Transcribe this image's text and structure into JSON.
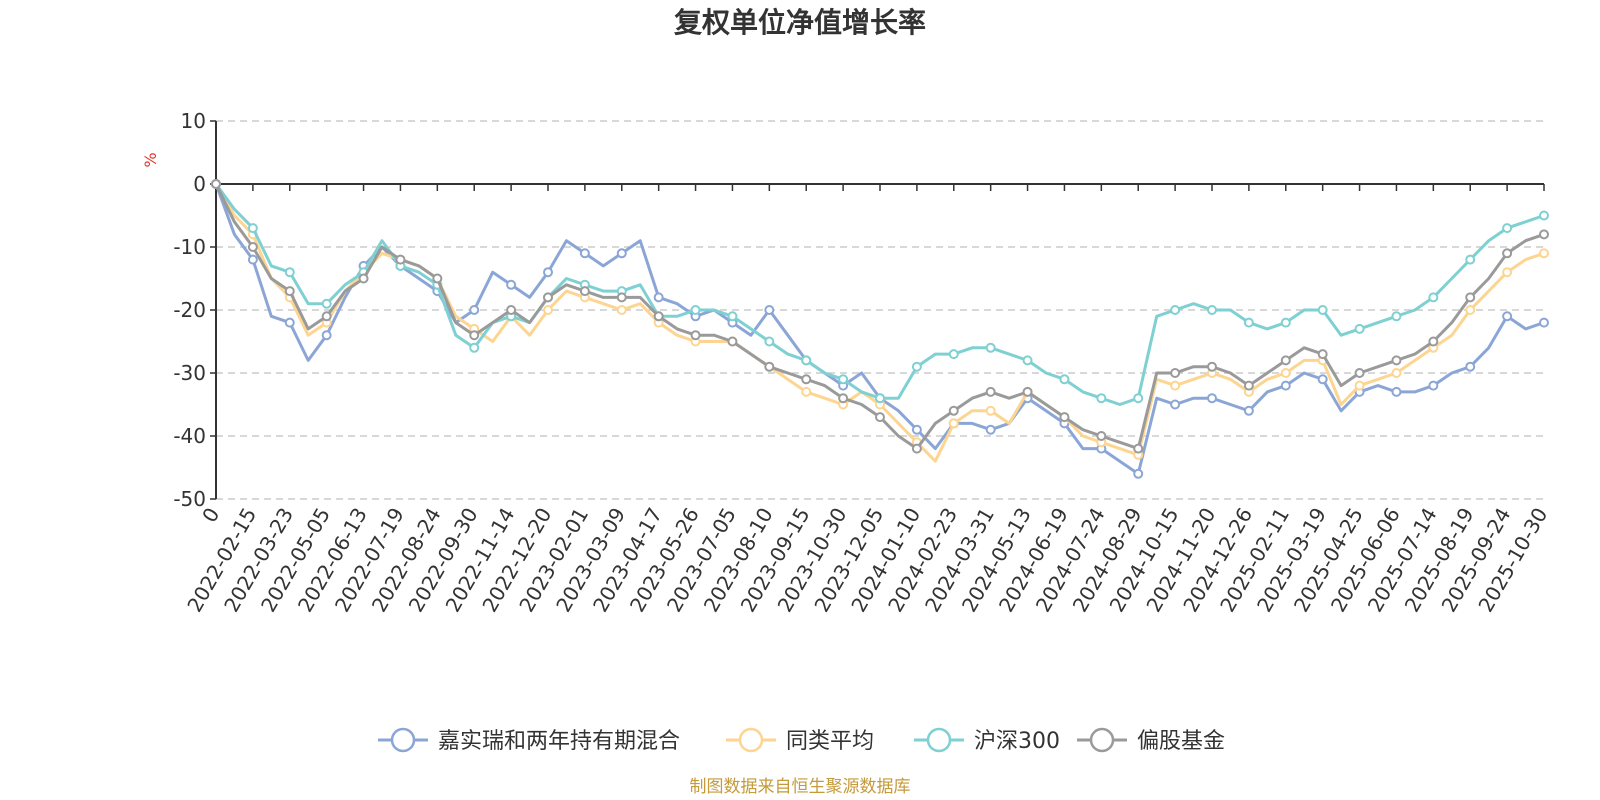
{
  "chart_data": {
    "type": "line",
    "title": "复权单位净值增长率",
    "ylabel": "%",
    "ylim": [
      -50,
      10
    ],
    "yticks": [
      10,
      0,
      -10,
      -20,
      -30,
      -40,
      -50
    ],
    "grid": true,
    "legend_position": "bottom-center",
    "x_tick_labels": [
      "0",
      "2022-02-15",
      "2022-03-23",
      "2022-05-05",
      "2022-06-13",
      "2022-07-19",
      "2022-08-24",
      "2022-09-30",
      "2022-11-14",
      "2022-12-20",
      "2023-02-01",
      "2023-03-09",
      "2023-04-17",
      "2023-05-26",
      "2023-07-05",
      "2023-08-10",
      "2023-09-15",
      "2023-10-30",
      "2023-12-05",
      "2024-01-10",
      "2024-02-23",
      "2024-03-31",
      "2024-05-13",
      "2024-06-19",
      "2024-07-24",
      "2024-08-29",
      "2024-10-15",
      "2024-11-20",
      "2024-12-26",
      "2025-02-11",
      "2025-03-19",
      "2025-04-25",
      "2025-06-06",
      "2025-07-14",
      "2025-08-19",
      "2025-09-24",
      "2025-10-30"
    ],
    "x": [
      0,
      0.5,
      1,
      1.5,
      2,
      2.5,
      3,
      3.5,
      4,
      4.5,
      5,
      5.5,
      6,
      6.5,
      7,
      7.5,
      8,
      8.5,
      9,
      9.5,
      10,
      10.5,
      11,
      11.5,
      12,
      12.5,
      13,
      13.5,
      14,
      14.5,
      15,
      15.5,
      16,
      16.5,
      17,
      17.5,
      18,
      18.5,
      19,
      19.5,
      20,
      20.5,
      21,
      21.5,
      22,
      22.5,
      23,
      23.5,
      24,
      24.5,
      25,
      25.5,
      26,
      26.5,
      27,
      27.5,
      28,
      28.5,
      29,
      29.5,
      30,
      30.5,
      31,
      31.5,
      32,
      32.5,
      33,
      33.5,
      34,
      34.5,
      35,
      35.5,
      36
    ],
    "series": [
      {
        "name": "嘉实瑞和两年持有期混合",
        "color": "#8ba6d6",
        "values": [
          0,
          -8,
          -12,
          -21,
          -22,
          -28,
          -24,
          -18,
          -13,
          -10,
          -13,
          -15,
          -17,
          -22,
          -20,
          -14,
          -16,
          -18,
          -14,
          -9,
          -11,
          -13,
          -11,
          -9,
          -18,
          -19,
          -21,
          -20,
          -22,
          -24,
          -20,
          -24,
          -28,
          -30,
          -32,
          -30,
          -34,
          -36,
          -39,
          -42,
          -38,
          -38,
          -39,
          -38,
          -34,
          -36,
          -38,
          -42,
          -42,
          -44,
          -46,
          -34,
          -35,
          -34,
          -34,
          -35,
          -36,
          -33,
          -32,
          -30,
          -31,
          -36,
          -33,
          -32,
          -33,
          -33,
          -32,
          -30,
          -29,
          -26,
          -21,
          -23,
          -22
        ]
      },
      {
        "name": "同类平均",
        "color": "#fdd591",
        "values": [
          0,
          -5,
          -8,
          -15,
          -18,
          -24,
          -22,
          -17,
          -14,
          -11,
          -12,
          -13,
          -15,
          -21,
          -23,
          -25,
          -21,
          -24,
          -20,
          -17,
          -18,
          -19,
          -20,
          -19,
          -22,
          -24,
          -25,
          -25,
          -25,
          -27,
          -29,
          -31,
          -33,
          -34,
          -35,
          -33,
          -35,
          -38,
          -41,
          -44,
          -38,
          -36,
          -36,
          -38,
          -33,
          -35,
          -37,
          -40,
          -41,
          -42,
          -43,
          -31,
          -32,
          -31,
          -30,
          -31,
          -33,
          -31,
          -30,
          -28,
          -28,
          -35,
          -32,
          -31,
          -30,
          -28,
          -26,
          -24,
          -20,
          -17,
          -14,
          -12,
          -11
        ]
      },
      {
        "name": "沪深300",
        "color": "#7ed0d2",
        "values": [
          0,
          -4,
          -7,
          -13,
          -14,
          -19,
          -19,
          -16,
          -14,
          -9,
          -13,
          -14,
          -16,
          -24,
          -26,
          -22,
          -21,
          -22,
          -18,
          -15,
          -16,
          -17,
          -17,
          -16,
          -21,
          -21,
          -20,
          -20,
          -21,
          -23,
          -25,
          -27,
          -28,
          -30,
          -31,
          -33,
          -34,
          -34,
          -29,
          -27,
          -27,
          -26,
          -26,
          -27,
          -28,
          -30,
          -31,
          -33,
          -34,
          -35,
          -34,
          -21,
          -20,
          -19,
          -20,
          -20,
          -22,
          -23,
          -22,
          -20,
          -20,
          -24,
          -23,
          -22,
          -21,
          -20,
          -18,
          -15,
          -12,
          -9,
          -7,
          -6,
          -5
        ]
      },
      {
        "name": "偏股基金",
        "color": "#9a9a9a",
        "values": [
          0,
          -6,
          -10,
          -15,
          -17,
          -23,
          -21,
          -17,
          -15,
          -10,
          -12,
          -13,
          -15,
          -22,
          -24,
          -22,
          -20,
          -22,
          -18,
          -16,
          -17,
          -18,
          -18,
          -18,
          -21,
          -23,
          -24,
          -24,
          -25,
          -27,
          -29,
          -30,
          -31,
          -32,
          -34,
          -35,
          -37,
          -40,
          -42,
          -38,
          -36,
          -34,
          -33,
          -34,
          -33,
          -35,
          -37,
          -39,
          -40,
          -41,
          -42,
          -30,
          -30,
          -29,
          -29,
          -30,
          -32,
          -30,
          -28,
          -26,
          -27,
          -32,
          -30,
          -29,
          -28,
          -27,
          -25,
          -22,
          -18,
          -15,
          -11,
          -9,
          -8
        ]
      }
    ]
  },
  "footer": "制图数据来自恒生聚源数据库"
}
